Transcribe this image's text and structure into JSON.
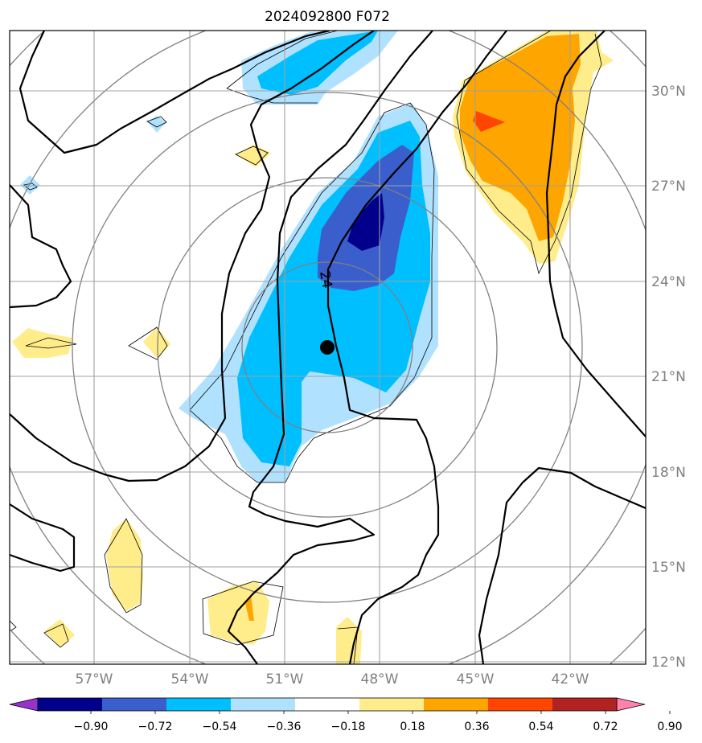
{
  "title": "2024092800 F072",
  "map": {
    "lon_labels": [
      "57°W",
      "54°W",
      "51°W",
      "48°W",
      "45°W",
      "42°W"
    ],
    "lat_labels": [
      "30°N",
      "27°N",
      "24°N",
      "21°N",
      "18°N",
      "15°N",
      "12°N"
    ],
    "contour_label": "24",
    "storm_center": {
      "lon": "49.6W",
      "lat": "21.9N"
    }
  },
  "colorbar": {
    "ticks": [
      "−0.90",
      "−0.72",
      "−0.54",
      "−0.36",
      "−0.18",
      "0.18",
      "0.36",
      "0.54",
      "0.72",
      "0.90"
    ],
    "colors": [
      "#9932cc",
      "#00008b",
      "#3a5fcd",
      "#00bfff",
      "#b0e2ff",
      "#ffffff",
      "#ffec8b",
      "#ffa500",
      "#ff4500",
      "#b22222",
      "#ff82ab"
    ]
  }
}
